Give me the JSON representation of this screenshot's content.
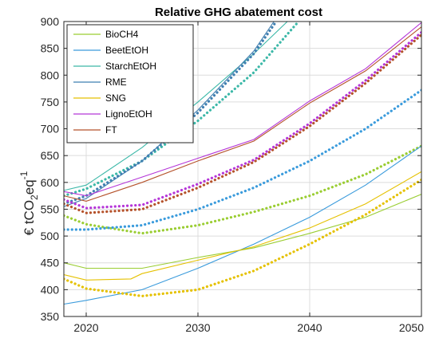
{
  "chart_data": {
    "type": "line",
    "title": "Relative GHG abatement cost",
    "ylabel_main": "€ tCO",
    "ylabel_sub": "2",
    "ylabel_mid": "eq",
    "ylabel_sup": "-1",
    "xlabel": "",
    "xlim": [
      2018,
      2050
    ],
    "ylim": [
      350,
      900
    ],
    "x_ticks": [
      2020,
      2030,
      2040,
      2050
    ],
    "y_ticks": [
      350,
      400,
      450,
      500,
      550,
      600,
      650,
      700,
      750,
      800,
      850,
      900
    ],
    "grid": true,
    "legend_position": "top-left",
    "series": [
      {
        "name": "BioCH4",
        "color": "#9ACD32",
        "solid": {
          "x": [
            2018,
            2020,
            2025,
            2030,
            2035,
            2040,
            2045,
            2050
          ],
          "y": [
            450,
            440,
            440,
            460,
            478,
            505,
            535,
            578
          ]
        },
        "dotted": {
          "x": [
            2018,
            2020,
            2025,
            2030,
            2035,
            2040,
            2045,
            2050
          ],
          "y": [
            538,
            522,
            505,
            520,
            545,
            575,
            615,
            668
          ]
        }
      },
      {
        "name": "BeetEtOH",
        "color": "#3A9BDC",
        "solid": {
          "x": [
            2018,
            2020,
            2025,
            2030,
            2035,
            2040,
            2045,
            2050
          ],
          "y": [
            373,
            380,
            400,
            440,
            485,
            535,
            595,
            668
          ]
        },
        "dotted": {
          "x": [
            2018,
            2020,
            2025,
            2030,
            2035,
            2040,
            2045,
            2050
          ],
          "y": [
            512,
            512,
            520,
            550,
            590,
            640,
            700,
            772
          ]
        }
      },
      {
        "name": "StarchEtOH",
        "color": "#3CB8A8",
        "solid": {
          "x": [
            2018,
            2020,
            2025,
            2030,
            2035,
            2038
          ],
          "y": [
            585,
            595,
            665,
            750,
            840,
            900
          ]
        },
        "dotted": {
          "x": [
            2018,
            2020,
            2025,
            2030,
            2035,
            2039
          ],
          "y": [
            575,
            588,
            640,
            715,
            805,
            900
          ]
        }
      },
      {
        "name": "RME",
        "color": "#3F7FB0",
        "solid": {
          "x": [
            2018,
            2020,
            2025,
            2030,
            2035,
            2036.8
          ],
          "y": [
            555,
            570,
            640,
            735,
            845,
            900
          ]
        },
        "dotted": {
          "x": [
            2018,
            2020,
            2025,
            2030,
            2035,
            2037
          ],
          "y": [
            560,
            575,
            640,
            730,
            840,
            900
          ]
        }
      },
      {
        "name": "SNG",
        "color": "#E5C100",
        "solid": {
          "x": [
            2018,
            2020,
            2024,
            2025,
            2030,
            2035,
            2040,
            2045,
            2050
          ],
          "y": [
            428,
            418,
            420,
            430,
            455,
            480,
            515,
            560,
            620
          ]
        },
        "dotted": {
          "x": [
            2018,
            2020,
            2025,
            2030,
            2035,
            2040,
            2045,
            2050
          ],
          "y": [
            420,
            402,
            388,
            400,
            435,
            485,
            540,
            605
          ]
        }
      },
      {
        "name": "LignoEtOH",
        "color": "#B536D8",
        "solid": {
          "x": [
            2018,
            2020,
            2025,
            2030,
            2035,
            2040,
            2045,
            2050
          ],
          "y": [
            583,
            575,
            610,
            645,
            680,
            752,
            812,
            898
          ]
        },
        "dotted": {
          "x": [
            2018,
            2020,
            2025,
            2030,
            2035,
            2040,
            2045,
            2050
          ],
          "y": [
            568,
            552,
            558,
            597,
            642,
            710,
            790,
            880
          ]
        }
      },
      {
        "name": "FT",
        "color": "#B5522B",
        "solid": {
          "x": [
            2018,
            2020,
            2025,
            2030,
            2035,
            2040,
            2045,
            2050
          ],
          "y": [
            575,
            565,
            600,
            640,
            677,
            748,
            808,
            890
          ]
        },
        "dotted": {
          "x": [
            2018,
            2020,
            2025,
            2030,
            2035,
            2040,
            2045,
            2050
          ],
          "y": [
            560,
            543,
            550,
            590,
            638,
            705,
            785,
            875
          ]
        }
      }
    ]
  }
}
